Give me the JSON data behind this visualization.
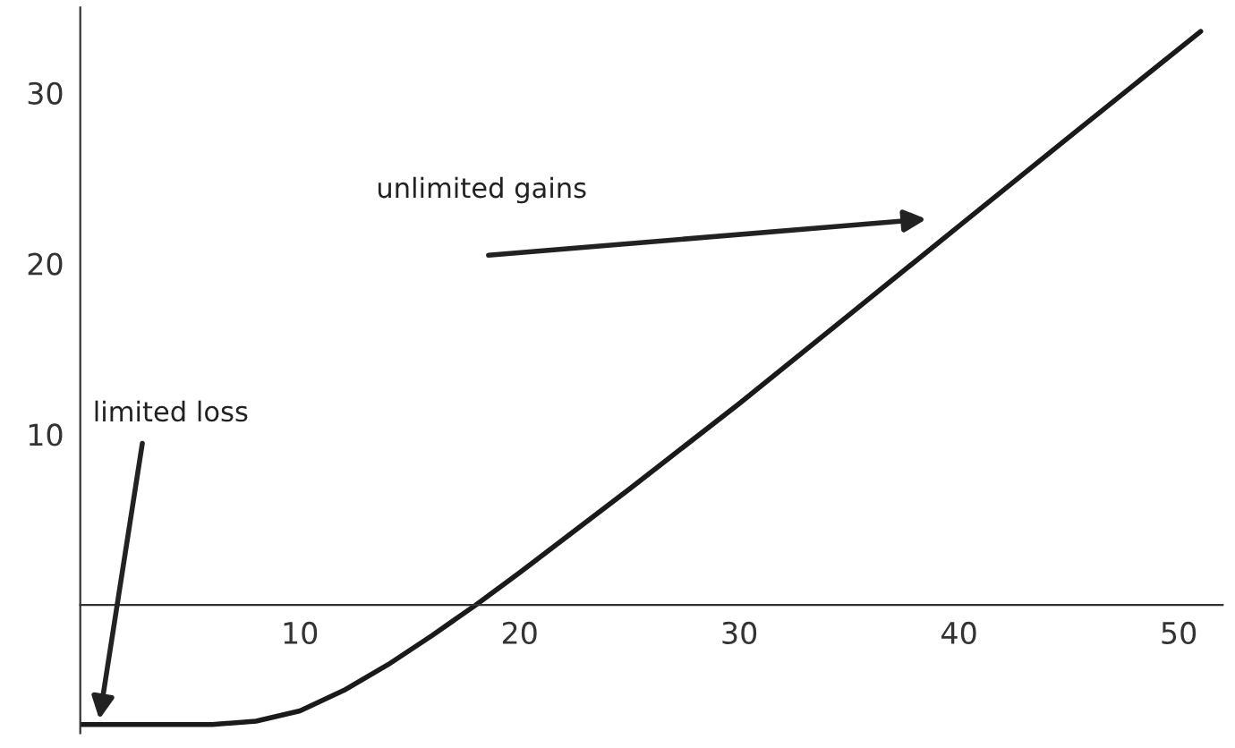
{
  "chart_data": {
    "type": "line",
    "x": [
      0,
      3,
      6,
      8,
      10,
      12,
      14,
      16,
      18,
      20,
      25,
      30,
      35,
      40,
      45,
      51
    ],
    "values": [
      -7,
      -7,
      -7,
      -6.8,
      -6.2,
      -5,
      -3.5,
      -1.8,
      0,
      1.9,
      6.8,
      11.8,
      17,
      22.2,
      27.4,
      33.6
    ],
    "color": "#1a1a1a",
    "xlim": [
      0,
      52
    ],
    "ylim": [
      -7.5,
      35
    ],
    "xticks": [
      10,
      20,
      30,
      40,
      50
    ],
    "yticks": [
      10,
      20,
      30
    ],
    "grid": false,
    "marker": "none",
    "line_style": "solid",
    "annotations": [
      "unlimited gains",
      "limited loss"
    ]
  }
}
